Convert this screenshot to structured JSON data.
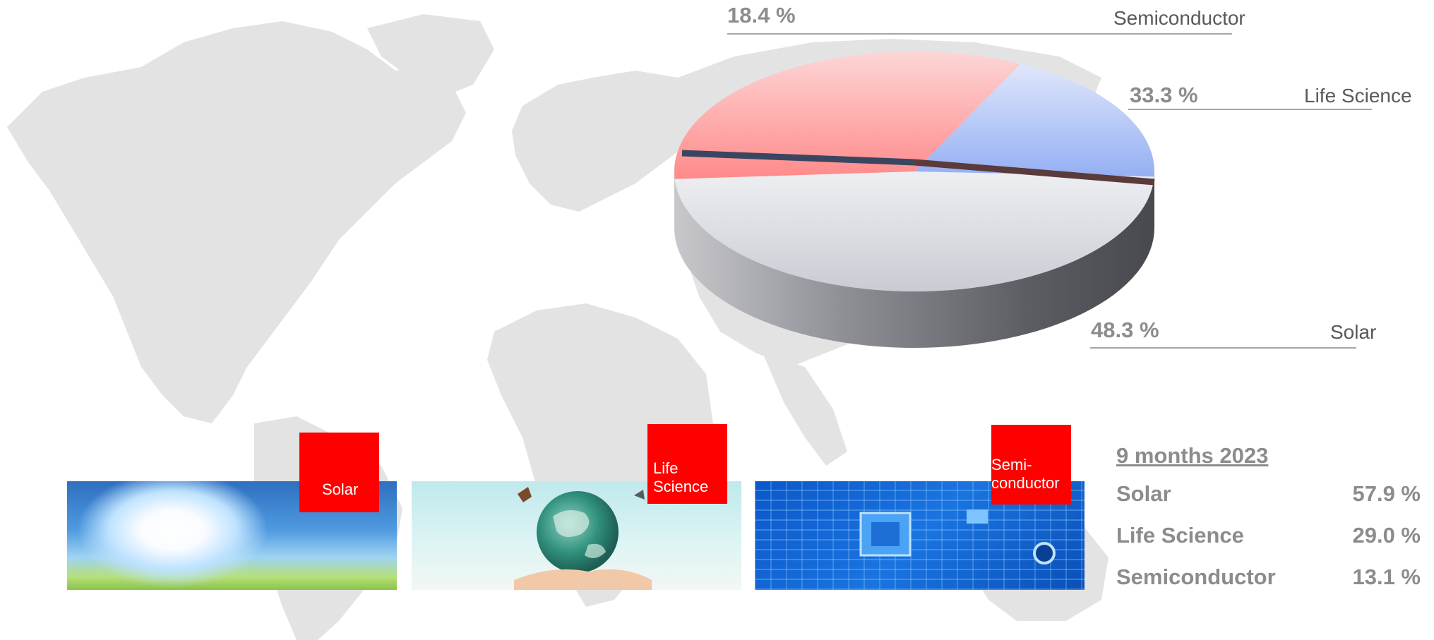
{
  "chart_data": {
    "type": "pie",
    "style": "3d",
    "slices": [
      {
        "label": "Solar",
        "value": 48.3,
        "value_label": "48.3 %",
        "color": "#d9dce3"
      },
      {
        "label": "Life Science",
        "value": 33.3,
        "value_label": "33.3 %",
        "color": "#ff8f8f"
      },
      {
        "label": "Semiconductor",
        "value": 18.4,
        "value_label": "18.4 %",
        "color": "#9db7f5"
      }
    ]
  },
  "segments": [
    {
      "label": "Solar",
      "tag": "Solar"
    },
    {
      "label": "Life Science",
      "tag": "Life\nScience"
    },
    {
      "label": "Semiconductor",
      "tag": "Semi-\nconductor"
    }
  ],
  "ytd": {
    "title": "9 months 2023",
    "rows": [
      {
        "label": "Solar",
        "value": "57.9 %"
      },
      {
        "label": "Life Science",
        "value": "29.0 %"
      },
      {
        "label": "Semiconductor",
        "value": "13.1 %"
      }
    ]
  }
}
